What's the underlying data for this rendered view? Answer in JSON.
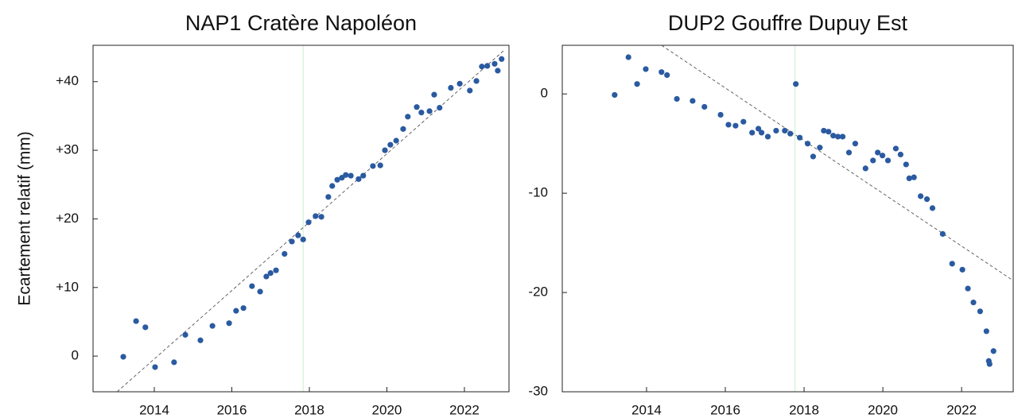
{
  "chart_data": [
    {
      "type": "scatter",
      "title": "NAP1 Cratère Napoléon",
      "ylabel": "Ecartement relatif (mm)",
      "color": "#2a5aa0",
      "x": [
        2013.2,
        2013.53,
        2013.77,
        2014.02,
        2014.51,
        2014.8,
        2015.19,
        2015.5,
        2015.93,
        2016.11,
        2016.3,
        2016.52,
        2016.73,
        2016.89,
        2017.0,
        2017.14,
        2017.36,
        2017.55,
        2017.71,
        2017.84,
        2017.98,
        2018.16,
        2018.31,
        2018.49,
        2018.59,
        2018.72,
        2018.84,
        2018.94,
        2019.07,
        2019.27,
        2019.39,
        2019.64,
        2019.83,
        2019.95,
        2020.09,
        2020.24,
        2020.42,
        2020.54,
        2020.77,
        2020.89,
        2021.1,
        2021.22,
        2021.36,
        2021.65,
        2021.88,
        2022.14,
        2022.31,
        2022.45,
        2022.59,
        2022.78,
        2022.86,
        2022.96
      ],
      "values": [
        -0.1,
        5.1,
        4.2,
        -1.6,
        -0.9,
        3.1,
        2.3,
        4.4,
        4.8,
        6.6,
        7.0,
        10.2,
        9.4,
        11.6,
        12.1,
        12.5,
        14.9,
        16.7,
        17.6,
        17.0,
        19.5,
        20.4,
        20.3,
        23.2,
        24.8,
        25.7,
        26.0,
        26.4,
        26.3,
        25.8,
        26.3,
        27.7,
        27.8,
        30.0,
        30.8,
        31.4,
        33.1,
        34.9,
        36.3,
        35.5,
        35.7,
        38.1,
        36.2,
        39.1,
        39.7,
        38.7,
        40.1,
        42.2,
        42.3,
        42.6,
        41.6,
        43.3
      ],
      "trend": {
        "x": [
          2013.04,
          2023.05
        ],
        "y": [
          -5.2,
          44.7
        ]
      },
      "vline": 2017.84,
      "xlim": [
        2012.42,
        2023.15
      ],
      "ylim": [
        -5.2,
        45.3
      ],
      "xticks": [
        2014,
        2016,
        2018,
        2020,
        2022
      ],
      "yticks": [
        0,
        {
          "value": 10,
          "label": "+10"
        },
        {
          "value": 20,
          "label": "+20"
        },
        {
          "value": 30,
          "label": "+30"
        },
        {
          "value": 40,
          "label": "+40"
        }
      ]
    },
    {
      "type": "scatter",
      "title": "DUP2 Gouffre Dupuy Est",
      "color": "#2a5aa0",
      "x": [
        2013.19,
        2013.54,
        2013.76,
        2013.98,
        2014.38,
        2014.52,
        2014.77,
        2015.17,
        2015.47,
        2015.88,
        2016.08,
        2016.26,
        2016.46,
        2016.68,
        2016.84,
        2016.92,
        2017.08,
        2017.29,
        2017.51,
        2017.65,
        2017.79,
        2017.89,
        2018.09,
        2018.23,
        2018.4,
        2018.5,
        2018.62,
        2018.74,
        2018.86,
        2018.98,
        2019.14,
        2019.3,
        2019.56,
        2019.75,
        2019.87,
        2019.99,
        2020.13,
        2020.33,
        2020.45,
        2020.59,
        2020.67,
        2020.79,
        2020.96,
        2021.12,
        2021.26,
        2021.52,
        2021.76,
        2022.02,
        2022.16,
        2022.3,
        2022.47,
        2022.63,
        2022.69,
        2022.71,
        2022.81
      ],
      "values": [
        -0.1,
        3.7,
        1.0,
        2.5,
        2.2,
        1.9,
        -0.5,
        -0.7,
        -1.3,
        -2.1,
        -3.1,
        -3.2,
        -2.8,
        -3.9,
        -3.5,
        -3.9,
        -4.3,
        -3.7,
        -3.7,
        -4.0,
        1.0,
        -4.4,
        -5.0,
        -6.3,
        -5.4,
        -3.7,
        -3.8,
        -4.2,
        -4.3,
        -4.3,
        -5.9,
        -5.0,
        -7.5,
        -6.7,
        -5.9,
        -6.2,
        -6.7,
        -5.5,
        -6.1,
        -7.1,
        -8.5,
        -8.4,
        -10.3,
        -10.6,
        -11.5,
        -14.1,
        -17.1,
        -17.7,
        -19.6,
        -21.0,
        -21.9,
        -23.9,
        -26.9,
        -27.2,
        -25.9
      ],
      "trend": {
        "x": [
          2014.38,
          2023.31
        ],
        "y": [
          4.9,
          -18.8
        ]
      },
      "vline": 2017.77,
      "xlim": [
        2011.86,
        2023.31
      ],
      "ylim": [
        -30,
        4.9
      ],
      "xticks": [
        2014,
        2016,
        2018,
        2020,
        2022
      ],
      "yticks": [
        {
          "value": -30,
          "label": "-30"
        },
        {
          "value": -20,
          "label": "-20"
        },
        {
          "value": -10,
          "label": "-10"
        },
        0
      ]
    }
  ]
}
